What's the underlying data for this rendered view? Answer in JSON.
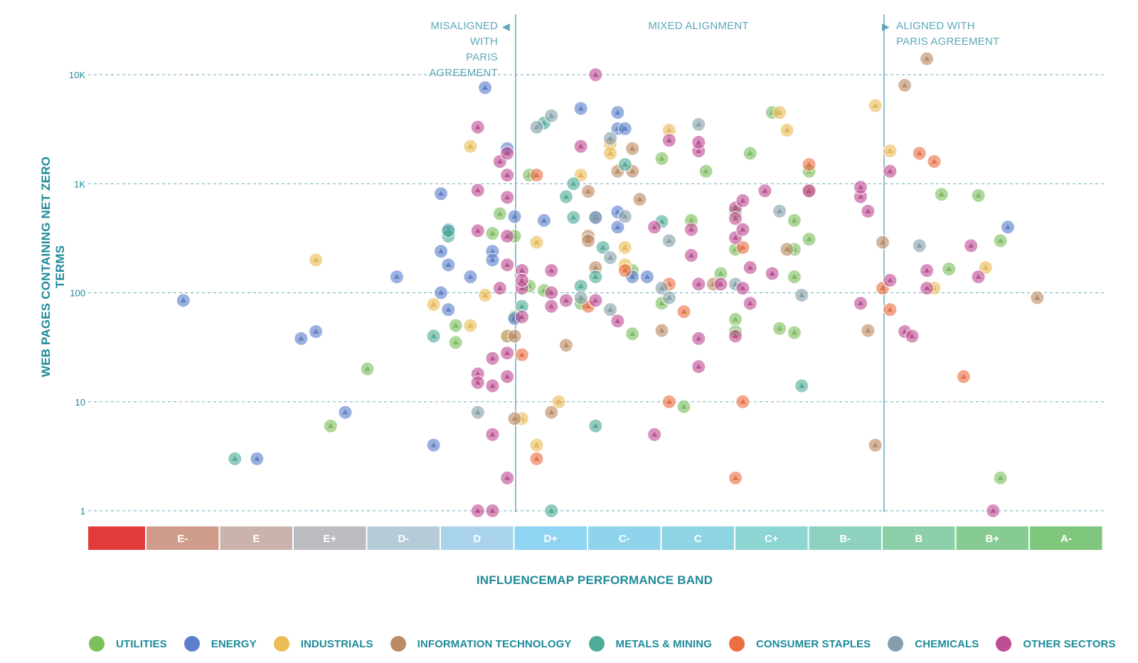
{
  "chart_data": {
    "type": "scatter",
    "xlabel": "INFLUENCEMAP PERFORMANCE BAND",
    "ylabel": "WEB PAGES CONTAINING NET ZERO TERMS",
    "y_scale": "log",
    "ylim": [
      1,
      10000
    ],
    "y_ticks": [
      "1",
      "10",
      "100",
      "1K",
      "10K"
    ],
    "grid": "horizontal dashed",
    "legend_position": "bottom",
    "categories": [
      "",
      "E-",
      "E",
      "E+",
      "D-",
      "D",
      "D+",
      "C-",
      "C",
      "C+",
      "B-",
      "B",
      "B+",
      "A-"
    ],
    "band_colors": [
      "#e33a3c",
      "#cf9c8c",
      "#c9b3ab",
      "#babcbf",
      "#b6cbd8",
      "#a8d3ea",
      "#8fd4f3",
      "#8fd4ec",
      "#8ed4e2",
      "#8dd5d3",
      "#8ed1c0",
      "#8dcfa8",
      "#86cb91",
      "#7ec77c"
    ],
    "regions": [
      {
        "label": "MISALIGNED WITH\nPARIS AGREEMENT",
        "marker": "◀"
      },
      {
        "label": "MIXED ALIGNMENT"
      },
      {
        "label": "ALIGNED WITH\nPARIS AGREEMENT",
        "marker": "▶"
      }
    ],
    "series": [
      {
        "name": "UTILITIES",
        "color": "#7cbf5d",
        "points": [
          [
            3,
            6
          ],
          [
            3.5,
            20
          ],
          [
            4.7,
            35
          ],
          [
            4.7,
            50
          ],
          [
            5.3,
            530
          ],
          [
            5.2,
            350
          ],
          [
            5.5,
            330
          ],
          [
            5.5,
            60
          ],
          [
            5.7,
            1200
          ],
          [
            5.7,
            115
          ],
          [
            5.9,
            105
          ],
          [
            6.4,
            80
          ],
          [
            7.1,
            160
          ],
          [
            7.1,
            42
          ],
          [
            7.5,
            1700
          ],
          [
            7.5,
            80
          ],
          [
            7.8,
            9
          ],
          [
            7.9,
            460
          ],
          [
            8.1,
            1300
          ],
          [
            8.3,
            150
          ],
          [
            8.5,
            550
          ],
          [
            8.5,
            250
          ],
          [
            8.5,
            57
          ],
          [
            8.5,
            44
          ],
          [
            8.7,
            1900
          ],
          [
            9,
            4500
          ],
          [
            9.1,
            47
          ],
          [
            9.3,
            460
          ],
          [
            9.3,
            250
          ],
          [
            9.3,
            140
          ],
          [
            9.3,
            43
          ],
          [
            9.5,
            310
          ],
          [
            9.5,
            1300
          ],
          [
            11.3,
            800
          ],
          [
            11.4,
            165
          ],
          [
            11.8,
            780
          ],
          [
            12.1,
            300
          ],
          [
            12.1,
            2
          ]
        ]
      },
      {
        "name": "ENERGY",
        "color": "#5c7fcc",
        "points": [
          [
            1,
            85
          ],
          [
            2,
            3
          ],
          [
            2.6,
            38
          ],
          [
            2.8,
            44
          ],
          [
            3.2,
            8
          ],
          [
            3.9,
            140
          ],
          [
            4.4,
            4
          ],
          [
            4.5,
            810
          ],
          [
            4.5,
            240
          ],
          [
            4.5,
            100
          ],
          [
            4.6,
            380
          ],
          [
            4.6,
            180
          ],
          [
            4.6,
            70
          ],
          [
            4.9,
            140
          ],
          [
            5.1,
            7600
          ],
          [
            5.2,
            240
          ],
          [
            5.2,
            200
          ],
          [
            5.4,
            2100
          ],
          [
            5.4,
            40
          ],
          [
            5.5,
            500
          ],
          [
            5.5,
            58
          ],
          [
            5.9,
            460
          ],
          [
            6.4,
            4900
          ],
          [
            6.6,
            490
          ],
          [
            6.9,
            4500
          ],
          [
            6.9,
            3200
          ],
          [
            6.9,
            550
          ],
          [
            6.9,
            400
          ],
          [
            7,
            3200
          ],
          [
            7.1,
            140
          ],
          [
            7.3,
            140
          ],
          [
            12.2,
            400
          ]
        ]
      },
      {
        "name": "INDUSTRIALS",
        "color": "#ebbc55",
        "points": [
          [
            2.8,
            200
          ],
          [
            4.4,
            78
          ],
          [
            4.9,
            50
          ],
          [
            4.9,
            2200
          ],
          [
            5.1,
            95
          ],
          [
            5.4,
            40
          ],
          [
            5.6,
            7
          ],
          [
            5.8,
            4
          ],
          [
            5.8,
            290
          ],
          [
            6.1,
            10
          ],
          [
            6.4,
            1200
          ],
          [
            6.8,
            2300
          ],
          [
            6.8,
            1900
          ],
          [
            7,
            260
          ],
          [
            7,
            180
          ],
          [
            7.6,
            3100
          ],
          [
            9.1,
            4500
          ],
          [
            9.2,
            3100
          ],
          [
            10.4,
            5200
          ],
          [
            10.6,
            2000
          ],
          [
            11.2,
            110
          ],
          [
            11.9,
            170
          ]
        ]
      },
      {
        "name": "INFORMATION TECHNOLOGY",
        "color": "#bb8b66",
        "points": [
          [
            5.5,
            7
          ],
          [
            5.5,
            40
          ],
          [
            6,
            8
          ],
          [
            6.2,
            33
          ],
          [
            6.5,
            850
          ],
          [
            6.5,
            330
          ],
          [
            6.5,
            300
          ],
          [
            6.6,
            170
          ],
          [
            6.9,
            1300
          ],
          [
            7.1,
            1300
          ],
          [
            7.1,
            2100
          ],
          [
            7.2,
            720
          ],
          [
            7.5,
            45
          ],
          [
            8.2,
            120
          ],
          [
            9.2,
            250
          ],
          [
            9.5,
            860
          ],
          [
            10.3,
            45
          ],
          [
            10.4,
            4
          ],
          [
            10.5,
            290
          ],
          [
            10.8,
            8000
          ],
          [
            11.1,
            14000
          ],
          [
            12.6,
            90
          ]
        ]
      },
      {
        "name": "METALS & MINING",
        "color": "#4ead98",
        "points": [
          [
            1.7,
            3
          ],
          [
            4.4,
            40
          ],
          [
            4.6,
            330
          ],
          [
            4.6,
            370
          ],
          [
            5.6,
            75
          ],
          [
            5.9,
            3600
          ],
          [
            6,
            1
          ],
          [
            6.2,
            760
          ],
          [
            6.3,
            1000
          ],
          [
            6.3,
            490
          ],
          [
            6.4,
            115
          ],
          [
            6.6,
            140
          ],
          [
            6.6,
            6
          ],
          [
            6.7,
            260
          ],
          [
            7,
            1500
          ],
          [
            7.5,
            450
          ],
          [
            9.4,
            14
          ]
        ]
      },
      {
        "name": "CONSUMER STAPLES",
        "color": "#ec6f43",
        "points": [
          [
            5.6,
            27
          ],
          [
            5.8,
            1200
          ],
          [
            5.8,
            3
          ],
          [
            6.5,
            75
          ],
          [
            7,
            160
          ],
          [
            7.6,
            10
          ],
          [
            7.6,
            120
          ],
          [
            7.8,
            67
          ],
          [
            8.5,
            2
          ],
          [
            8.6,
            10
          ],
          [
            8.6,
            260
          ],
          [
            9.5,
            1500
          ],
          [
            10.5,
            110
          ],
          [
            10.6,
            70
          ],
          [
            11,
            1900
          ],
          [
            11.2,
            1600
          ],
          [
            11.6,
            17
          ]
        ]
      },
      {
        "name": "CHEMICALS",
        "color": "#86a0ab",
        "points": [
          [
            5,
            8
          ],
          [
            5.8,
            3300
          ],
          [
            6,
            4200
          ],
          [
            6.4,
            90
          ],
          [
            6.6,
            490
          ],
          [
            6.8,
            2600
          ],
          [
            6.8,
            210
          ],
          [
            6.8,
            70
          ],
          [
            7,
            500
          ],
          [
            7.5,
            110
          ],
          [
            7.6,
            300
          ],
          [
            7.6,
            90
          ],
          [
            8,
            3500
          ],
          [
            8.5,
            120
          ],
          [
            9.1,
            560
          ],
          [
            9.4,
            95
          ],
          [
            11,
            270
          ]
        ]
      },
      {
        "name": "OTHER SECTORS",
        "color": "#be4e93",
        "points": [
          [
            5,
            3300
          ],
          [
            5,
            870
          ],
          [
            5,
            370
          ],
          [
            5,
            18
          ],
          [
            5,
            15
          ],
          [
            5,
            1
          ],
          [
            5.3,
            1600
          ],
          [
            5.4,
            1900
          ],
          [
            5.4,
            1200
          ],
          [
            5.4,
            750
          ],
          [
            5.4,
            330
          ],
          [
            5.4,
            180
          ],
          [
            5.4,
            28
          ],
          [
            5.4,
            17
          ],
          [
            5.4,
            2
          ],
          [
            5.3,
            110
          ],
          [
            5.2,
            25
          ],
          [
            5.2,
            14
          ],
          [
            5.2,
            5
          ],
          [
            5.2,
            1
          ],
          [
            5.6,
            160
          ],
          [
            5.6,
            110
          ],
          [
            5.6,
            130
          ],
          [
            5.6,
            60
          ],
          [
            6,
            160
          ],
          [
            6,
            100
          ],
          [
            6,
            75
          ],
          [
            6.2,
            85
          ],
          [
            6.4,
            2200
          ],
          [
            6.6,
            85
          ],
          [
            6.6,
            10000
          ],
          [
            6.9,
            55
          ],
          [
            7.4,
            5
          ],
          [
            7.4,
            400
          ],
          [
            7.6,
            2500
          ],
          [
            7.9,
            380
          ],
          [
            7.9,
            220
          ],
          [
            8,
            2000
          ],
          [
            8,
            2400
          ],
          [
            8,
            120
          ],
          [
            8,
            21
          ],
          [
            8,
            38
          ],
          [
            8.3,
            120
          ],
          [
            8.5,
            600
          ],
          [
            8.5,
            480
          ],
          [
            8.5,
            320
          ],
          [
            8.5,
            40
          ],
          [
            8.6,
            700
          ],
          [
            8.6,
            380
          ],
          [
            8.6,
            110
          ],
          [
            8.7,
            170
          ],
          [
            8.7,
            80
          ],
          [
            8.9,
            860
          ],
          [
            9,
            150
          ],
          [
            9.5,
            860
          ],
          [
            10.2,
            760
          ],
          [
            10.2,
            930
          ],
          [
            10.2,
            80
          ],
          [
            10.3,
            560
          ],
          [
            10.6,
            130
          ],
          [
            10.6,
            1300
          ],
          [
            10.8,
            44
          ],
          [
            10.9,
            40
          ],
          [
            11.1,
            160
          ],
          [
            11.1,
            110
          ],
          [
            11.7,
            270
          ],
          [
            11.8,
            140
          ],
          [
            12,
            1
          ]
        ]
      }
    ]
  }
}
